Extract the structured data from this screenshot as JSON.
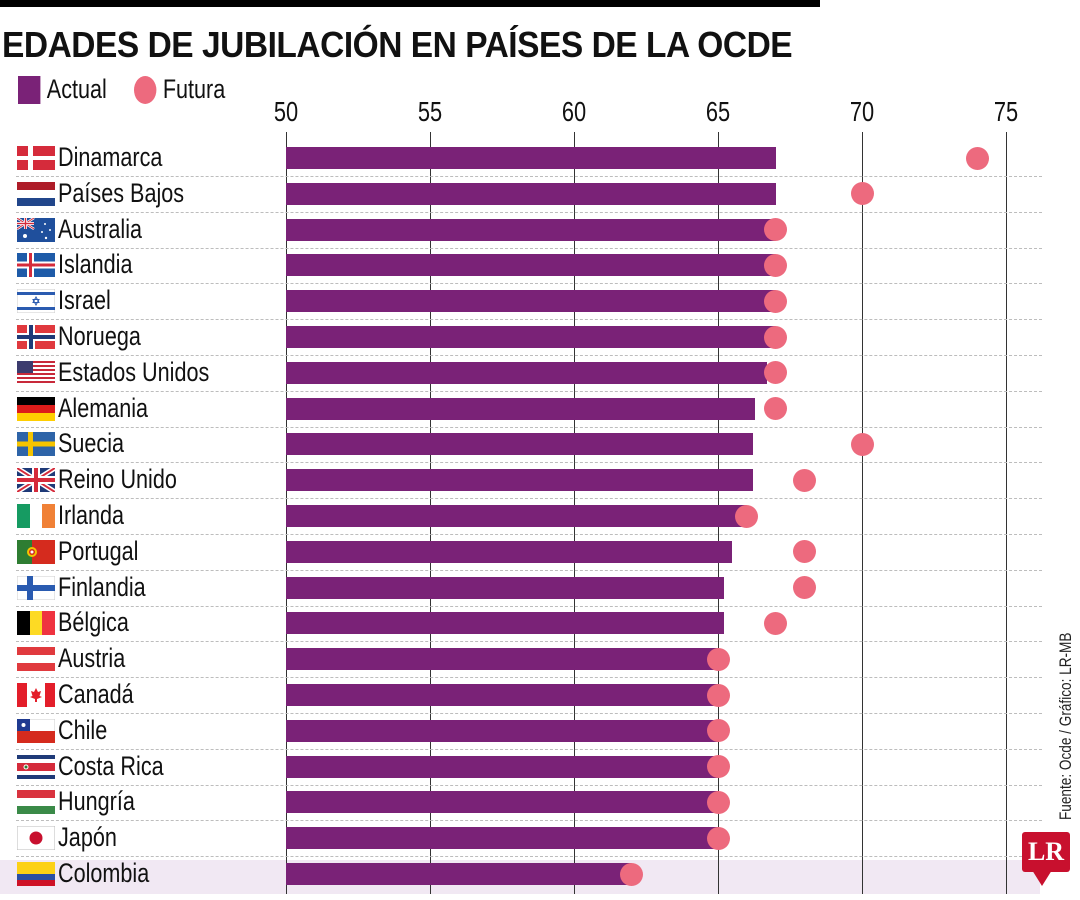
{
  "title": "EDADES DE JUBILACIÓN EN PAÍSES DE LA OCDE",
  "legend": {
    "actual": "Actual",
    "future": "Futura"
  },
  "source": "Fuente: Ocde / Gráfico: LR-MB",
  "logo": "LR",
  "colors": {
    "actual": "#7a2277",
    "future": "#ed6a7e",
    "highlight": "#f1e8f3"
  },
  "chart_data": {
    "type": "bar",
    "title": "EDADES DE JUBILACIÓN EN PAÍSES DE LA OCDE",
    "xlabel": "",
    "ylabel": "",
    "xlim": [
      50,
      76
    ],
    "ticks": [
      50,
      55,
      60,
      65,
      70,
      75
    ],
    "tick_labels": [
      "50",
      "55",
      "60",
      "65",
      "70",
      "75"
    ],
    "legend_position": "top-left",
    "grid": true,
    "categories": [
      "Dinamarca",
      "Países Bajos",
      "Australia",
      "Islandia",
      "Israel",
      "Noruega",
      "Estados Unidos",
      "Alemania",
      "Suecia",
      "Reino Unido",
      "Irlanda",
      "Portugal",
      "Finlandia",
      "Bélgica",
      "Austria",
      "Canadá",
      "Chile",
      "Costa Rica",
      "Hungría",
      "Japón",
      "Colombia"
    ],
    "flags": [
      "denmark",
      "netherlands",
      "australia",
      "iceland",
      "israel",
      "norway",
      "usa",
      "germany",
      "sweden",
      "uk",
      "ireland",
      "portugal",
      "finland",
      "belgium",
      "austria",
      "canada",
      "chile",
      "costa-rica",
      "hungary",
      "japan",
      "colombia"
    ],
    "highlighted": "Colombia",
    "series": [
      {
        "name": "Actual",
        "kind": "bar",
        "values": [
          67,
          67,
          67,
          67,
          67,
          67,
          66.7,
          66.3,
          66.2,
          66.2,
          66,
          65.5,
          65.2,
          65.2,
          65,
          65,
          65,
          65,
          65,
          65,
          62
        ]
      },
      {
        "name": "Futura",
        "kind": "dot",
        "values": [
          74,
          70,
          67,
          67,
          67,
          67,
          67,
          67,
          70,
          68,
          66,
          68,
          68,
          67,
          65,
          65,
          65,
          65,
          65,
          65,
          62
        ]
      }
    ]
  }
}
